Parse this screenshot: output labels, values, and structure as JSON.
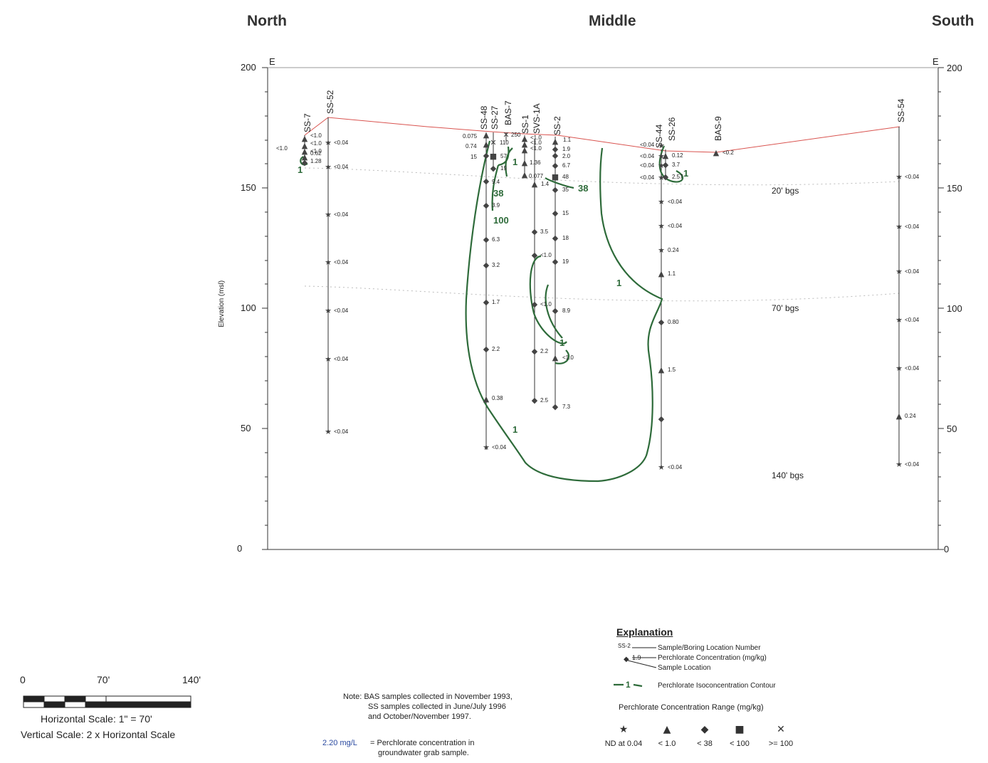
{
  "headers": {
    "north": "North",
    "middle": "Middle",
    "south": "South"
  },
  "axis": {
    "ylabel": "Elevation (msl)",
    "left_ticks": [
      "200",
      "150",
      "100",
      "50",
      "0"
    ],
    "right_ticks": [
      "200",
      "150",
      "100",
      "50",
      "0"
    ],
    "corner_left": "E",
    "corner_right": "E",
    "ylim": [
      0,
      200
    ]
  },
  "boring_names": [
    "SS-7",
    "SS-52",
    "SS-48",
    "SS-27",
    "BAS-7",
    "SS-1",
    "SVS-1A",
    "SS-2",
    "SS-44",
    "SS-26",
    "BAS-9",
    "SS-54"
  ],
  "depth_labels": [
    "20' bgs",
    "70' bgs",
    "140' bgs"
  ],
  "samples": {
    "ss7": [
      "<1.0",
      "<1.0",
      "<1.0",
      "0.62",
      "1.28"
    ],
    "ss7_side": "<1.0",
    "ss52": [
      "<0.04",
      "<0.04",
      "<0.04",
      "<0.04",
      "<0.04",
      "<0.04",
      "<0.04"
    ],
    "ss48": [
      "0.075",
      "0.74",
      "15",
      "9.4",
      "3.9",
      "6.3",
      "3.2",
      "1.7",
      "2.2",
      "0.38",
      "<0.04"
    ],
    "ss27": [
      "110",
      "57",
      "19"
    ],
    "bas7": [
      "250"
    ],
    "ss1": [
      "<1.0",
      "<1.0",
      "<1.0",
      "1.36",
      "0.077"
    ],
    "svs1a": [
      "1.4",
      "3.5",
      "<1.0",
      "<1.0",
      "2.2",
      "2.5"
    ],
    "ss2": [
      "1.1",
      "1.9",
      "2.0",
      "6.7",
      "48",
      "35",
      "15",
      "18",
      "19",
      "8.9",
      "<1.0",
      "7.3"
    ],
    "ss44": [
      "<0.04",
      "<0.04",
      "<0.04",
      "<0.04",
      "<0.04",
      "<0.04",
      "0.24",
      "1.1",
      "0.80",
      "1.5",
      "<0.04"
    ],
    "ss26": [
      "0.12",
      "3.7",
      "2.57"
    ],
    "bas9": [
      "<0.2"
    ],
    "ss54": [
      "<0.04",
      "<0.04",
      "<0.04",
      "<0.04",
      "<0.04",
      "0.24",
      "<0.04"
    ]
  },
  "contours": [
    "1",
    "1",
    "38",
    "38",
    "100",
    "1",
    "1",
    "1",
    "1"
  ],
  "explanation": {
    "title": "Explanation",
    "boring_example": "SS-2",
    "value_example": "1.9",
    "location_number": "Sample/Boring Location Number",
    "concentration": "Perchlorate Concentration (mg/kg)",
    "sample_location": "Sample Location",
    "contour_sample": "1",
    "contour_label": "Perchlorate Isoconcentration Contour",
    "range_title": "Perchlorate Concentration Range (mg/kg)",
    "ranges": [
      {
        "symbol": "★",
        "label": "ND at 0.04"
      },
      {
        "symbol": "▲",
        "label": "< 1.0"
      },
      {
        "symbol": "◆",
        "label": "< 38"
      },
      {
        "symbol": "■",
        "label": "< 100"
      },
      {
        "symbol": "✕",
        "label": ">= 100"
      }
    ]
  },
  "note": {
    "line1": "Note: BAS samples collected in November 1993,",
    "line2": "SS samples collected in June/July 1996",
    "line3": "and October/November 1997.",
    "gw_value": "2.20 mg/L",
    "gw_text1": "= Perchlorate concentration in",
    "gw_text2": "groundwater grab sample."
  },
  "scale": {
    "tick0": "0",
    "tick1": "70'",
    "tick2": "140'",
    "horizontal": "Horizontal Scale: 1\" = 70'",
    "vertical": "Vertical Scale: 2 x Horizontal Scale"
  },
  "colors": {
    "contour": "#2e6b3a",
    "surface": "#d9534f",
    "gw_value": "#2b4aa0"
  }
}
